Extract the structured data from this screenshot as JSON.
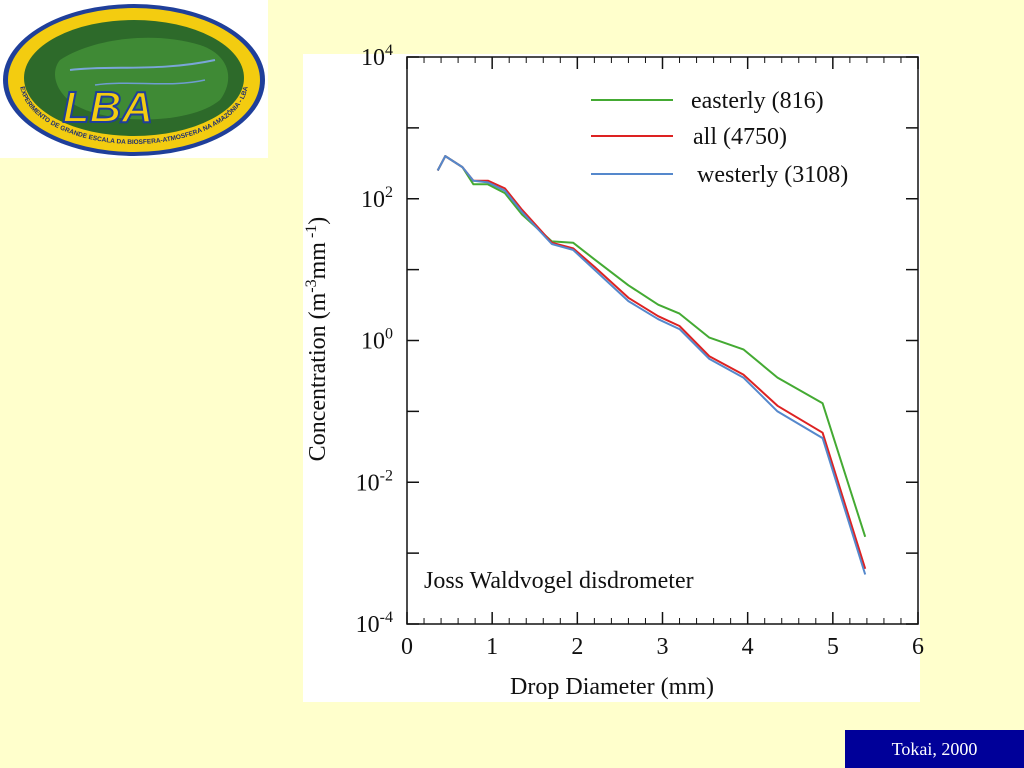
{
  "logo": {
    "label": "LBA",
    "ring_text": "EXPERIMENTO DE GRANDE ESCALA DA BIOSFERA-ATMOSFERA NA AMAZÔNIA - LBA"
  },
  "credit": "Tokai, 2000",
  "colors": {
    "slide_background": "#FFFFCC",
    "credit_background": "#000099",
    "easterly": "#44AA33",
    "all": "#DD2222",
    "westerly": "#5588CC"
  },
  "chart_data": {
    "type": "line",
    "xlabel": "Drop Diameter (mm)",
    "ylabel_parts": [
      "Concentration (m",
      "-3",
      "mm",
      " -1",
      ")"
    ],
    "annotation": "Joss Waldvogel disdrometer",
    "xlim": [
      0,
      6
    ],
    "ylim": [
      0.0001,
      10000
    ],
    "y_scale": "log",
    "x_ticks": [
      "0",
      "1",
      "2",
      "3",
      "4",
      "5",
      "6"
    ],
    "y_ticks": [
      {
        "value": 0.0001,
        "base": "10",
        "exp": "-4"
      },
      {
        "value": 0.01,
        "base": "10",
        "exp": "-2"
      },
      {
        "value": 1,
        "base": "10",
        "exp": "0"
      },
      {
        "value": 100,
        "base": "10",
        "exp": "2"
      },
      {
        "value": 10000,
        "base": "10",
        "exp": "4"
      }
    ],
    "legend_position": "top-right",
    "series": [
      {
        "name": "easterly (816)",
        "key": "easterly",
        "x": [
          0.36,
          0.45,
          0.65,
          0.78,
          0.95,
          1.15,
          1.35,
          1.7,
          1.95,
          2.2,
          2.6,
          2.95,
          3.2,
          3.55,
          3.95,
          4.35,
          4.88,
          5.38
        ],
        "y": [
          250,
          400,
          280,
          160,
          160,
          120,
          60,
          25,
          24,
          14,
          6,
          3.2,
          2.4,
          1.1,
          0.75,
          0.3,
          0.13,
          0.0017
        ]
      },
      {
        "name": "all (4750)",
        "key": "all",
        "x": [
          0.36,
          0.45,
          0.65,
          0.78,
          0.95,
          1.15,
          1.35,
          1.7,
          1.95,
          2.2,
          2.6,
          2.95,
          3.2,
          3.55,
          3.95,
          4.35,
          4.88,
          5.38
        ],
        "y": [
          250,
          400,
          280,
          180,
          180,
          140,
          70,
          24,
          20,
          11,
          4,
          2.2,
          1.6,
          0.6,
          0.33,
          0.12,
          0.05,
          0.0006
        ]
      },
      {
        "name": "westerly (3108)",
        "key": "westerly",
        "x": [
          0.36,
          0.45,
          0.65,
          0.78,
          0.95,
          1.15,
          1.35,
          1.7,
          1.95,
          2.2,
          2.6,
          2.95,
          3.2,
          3.55,
          3.95,
          4.35,
          4.88,
          5.38
        ],
        "y": [
          250,
          400,
          280,
          180,
          170,
          130,
          65,
          23,
          19,
          10,
          3.6,
          2.0,
          1.45,
          0.55,
          0.3,
          0.1,
          0.042,
          0.0005
        ]
      }
    ]
  }
}
